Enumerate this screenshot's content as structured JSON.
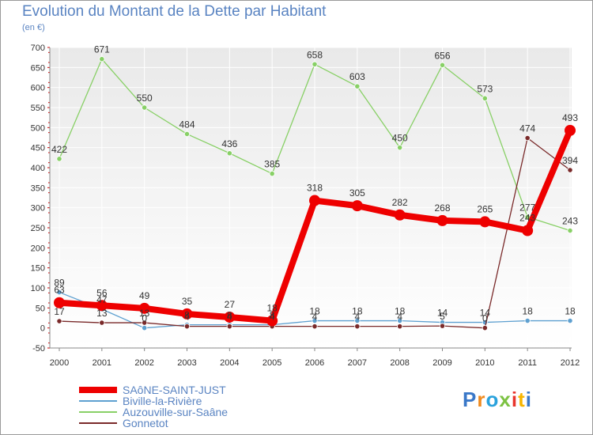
{
  "chart_data": {
    "type": "line",
    "title": "Evolution du Montant de la Dette par Habitant",
    "subtitle": "(en €)",
    "xlabel": "",
    "ylabel": "",
    "ylim": [
      -50,
      700
    ],
    "yticks": [
      -50,
      0,
      50,
      100,
      150,
      200,
      250,
      300,
      350,
      400,
      450,
      500,
      550,
      600,
      650,
      700
    ],
    "x": [
      "2000",
      "2001",
      "2002",
      "2003",
      "2004",
      "2005",
      "2006",
      "2007",
      "2008",
      "2009",
      "2010",
      "2011",
      "2012"
    ],
    "grid": true,
    "legend": "bottom-left",
    "series": [
      {
        "name": "SAôNE-SAINT-JUST",
        "color": "#ee0000",
        "values": [
          63,
          56,
          49,
          35,
          27,
          18,
          318,
          305,
          282,
          268,
          265,
          243,
          493
        ]
      },
      {
        "name": "Biville-la-Rivière",
        "color": "#5ea0d0",
        "values": [
          89,
          47,
          0,
          8,
          8,
          8,
          18,
          18,
          18,
          14,
          14,
          18,
          18
        ]
      },
      {
        "name": "Auzouville-sur-Saâne",
        "color": "#88d066",
        "values": [
          422,
          671,
          550,
          484,
          436,
          385,
          658,
          603,
          450,
          656,
          573,
          277,
          243
        ]
      },
      {
        "name": "Gonnetot",
        "color": "#7a2a2a",
        "values": [
          17,
          13,
          13,
          4,
          4,
          4,
          4,
          4,
          4,
          5,
          0,
          474,
          394
        ]
      }
    ]
  },
  "logo": {
    "text": "Proxiti",
    "colors": [
      "#3a78c8",
      "#f08a1e",
      "#2aa2dc",
      "#7cc242",
      "#e8352e",
      "#f7b500",
      "#3a78c8"
    ]
  }
}
